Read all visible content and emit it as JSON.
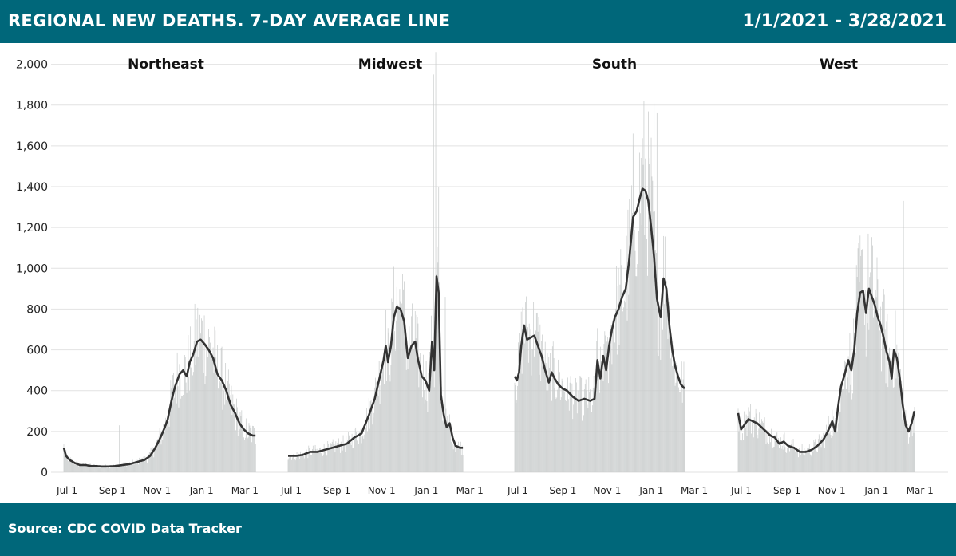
{
  "header": {
    "title": "REGIONAL NEW DEATHS. 7-DAY AVERAGE LINE",
    "date_range": "1/1/2021 - 3/28/2021"
  },
  "footer": {
    "source": "Source: CDC COVID Data Tracker"
  },
  "colors": {
    "banner": "#00677a",
    "bars": "#c9cccc",
    "line": "#333333",
    "grid": "#e2e2e2"
  },
  "chart_data": {
    "type": "bar",
    "title": "REGIONAL NEW DEATHS. 7-DAY AVERAGE LINE",
    "ylim": [
      0,
      2100
    ],
    "yticks": [
      0,
      200,
      400,
      600,
      800,
      1000,
      1200,
      1400,
      1600,
      1800,
      2000
    ],
    "ytick_labels": [
      "0",
      "200",
      "400",
      "600",
      "800",
      "1,000",
      "1,200",
      "1,400",
      "1,600",
      "1,800",
      "2,000"
    ],
    "x_domain_days": [
      0,
      277
    ],
    "xticks": [
      {
        "label": "Jul 1",
        "day": 0
      },
      {
        "label": "Sep 1",
        "day": 62
      },
      {
        "label": "Nov 1",
        "day": 123
      },
      {
        "label": "Jan 1",
        "day": 184
      },
      {
        "label": "Mar 1",
        "day": 243
      }
    ],
    "grid": true,
    "panels": [
      {
        "name": "Northeast",
        "bar_noise": 0.55,
        "spikes": [
          {
            "day": 76,
            "value": 230
          }
        ],
        "avg_series": [
          [
            0,
            120
          ],
          [
            3,
            80
          ],
          [
            8,
            60
          ],
          [
            15,
            45
          ],
          [
            22,
            35
          ],
          [
            30,
            35
          ],
          [
            38,
            30
          ],
          [
            45,
            30
          ],
          [
            52,
            28
          ],
          [
            60,
            28
          ],
          [
            70,
            30
          ],
          [
            80,
            35
          ],
          [
            90,
            40
          ],
          [
            100,
            50
          ],
          [
            110,
            60
          ],
          [
            118,
            80
          ],
          [
            125,
            120
          ],
          [
            132,
            170
          ],
          [
            138,
            220
          ],
          [
            142,
            260
          ],
          [
            147,
            350
          ],
          [
            152,
            420
          ],
          [
            158,
            480
          ],
          [
            163,
            500
          ],
          [
            168,
            470
          ],
          [
            172,
            540
          ],
          [
            177,
            580
          ],
          [
            182,
            640
          ],
          [
            187,
            650
          ],
          [
            192,
            630
          ],
          [
            198,
            600
          ],
          [
            204,
            560
          ],
          [
            210,
            480
          ],
          [
            216,
            450
          ],
          [
            222,
            400
          ],
          [
            228,
            330
          ],
          [
            234,
            290
          ],
          [
            240,
            240
          ],
          [
            246,
            210
          ],
          [
            252,
            190
          ],
          [
            258,
            180
          ],
          [
            262,
            180
          ]
        ]
      },
      {
        "name": "Midwest",
        "bar_noise": 0.5,
        "spikes": [
          {
            "day": 198,
            "value": 1950
          },
          {
            "day": 201,
            "value": 2060
          },
          {
            "day": 205,
            "value": 1400
          },
          {
            "day": 214,
            "value": 860
          }
        ],
        "avg_series": [
          [
            0,
            80
          ],
          [
            10,
            80
          ],
          [
            20,
            85
          ],
          [
            30,
            100
          ],
          [
            40,
            100
          ],
          [
            50,
            110
          ],
          [
            60,
            120
          ],
          [
            70,
            130
          ],
          [
            80,
            140
          ],
          [
            90,
            170
          ],
          [
            100,
            190
          ],
          [
            110,
            280
          ],
          [
            118,
            360
          ],
          [
            125,
            470
          ],
          [
            130,
            550
          ],
          [
            133,
            620
          ],
          [
            136,
            540
          ],
          [
            140,
            620
          ],
          [
            144,
            760
          ],
          [
            148,
            810
          ],
          [
            153,
            800
          ],
          [
            158,
            740
          ],
          [
            163,
            560
          ],
          [
            168,
            620
          ],
          [
            173,
            640
          ],
          [
            177,
            550
          ],
          [
            182,
            470
          ],
          [
            187,
            450
          ],
          [
            192,
            400
          ],
          [
            196,
            640
          ],
          [
            199,
            500
          ],
          [
            202,
            960
          ],
          [
            205,
            880
          ],
          [
            208,
            380
          ],
          [
            212,
            280
          ],
          [
            216,
            220
          ],
          [
            220,
            240
          ],
          [
            224,
            170
          ],
          [
            228,
            130
          ],
          [
            234,
            120
          ],
          [
            238,
            120
          ]
        ]
      },
      {
        "name": "South",
        "bar_noise": 0.5,
        "spikes": [
          {
            "day": 188,
            "value": 1640
          },
          {
            "day": 192,
            "value": 1810
          },
          {
            "day": 196,
            "value": 1760
          }
        ],
        "avg_series": [
          [
            0,
            470
          ],
          [
            3,
            450
          ],
          [
            6,
            490
          ],
          [
            9,
            620
          ],
          [
            13,
            720
          ],
          [
            17,
            650
          ],
          [
            22,
            660
          ],
          [
            27,
            670
          ],
          [
            32,
            620
          ],
          [
            37,
            570
          ],
          [
            42,
            500
          ],
          [
            47,
            440
          ],
          [
            51,
            490
          ],
          [
            55,
            460
          ],
          [
            60,
            430
          ],
          [
            66,
            410
          ],
          [
            72,
            400
          ],
          [
            80,
            370
          ],
          [
            88,
            350
          ],
          [
            96,
            360
          ],
          [
            104,
            350
          ],
          [
            110,
            360
          ],
          [
            114,
            550
          ],
          [
            118,
            460
          ],
          [
            122,
            570
          ],
          [
            126,
            500
          ],
          [
            130,
            620
          ],
          [
            134,
            700
          ],
          [
            138,
            760
          ],
          [
            143,
            800
          ],
          [
            148,
            860
          ],
          [
            153,
            900
          ],
          [
            158,
            1050
          ],
          [
            163,
            1250
          ],
          [
            168,
            1280
          ],
          [
            172,
            1340
          ],
          [
            176,
            1390
          ],
          [
            180,
            1380
          ],
          [
            184,
            1330
          ],
          [
            188,
            1200
          ],
          [
            192,
            1050
          ],
          [
            196,
            850
          ],
          [
            201,
            760
          ],
          [
            205,
            950
          ],
          [
            209,
            900
          ],
          [
            213,
            720
          ],
          [
            217,
            600
          ],
          [
            221,
            520
          ],
          [
            225,
            470
          ],
          [
            229,
            430
          ],
          [
            234,
            410
          ]
        ]
      },
      {
        "name": "West",
        "bar_noise": 0.55,
        "spikes": [
          {
            "day": 225,
            "value": 1330
          }
        ],
        "avg_series": [
          [
            0,
            290
          ],
          [
            4,
            210
          ],
          [
            8,
            230
          ],
          [
            14,
            260
          ],
          [
            20,
            250
          ],
          [
            26,
            240
          ],
          [
            32,
            220
          ],
          [
            38,
            200
          ],
          [
            44,
            180
          ],
          [
            50,
            170
          ],
          [
            56,
            140
          ],
          [
            62,
            150
          ],
          [
            68,
            130
          ],
          [
            76,
            120
          ],
          [
            84,
            100
          ],
          [
            92,
            100
          ],
          [
            100,
            110
          ],
          [
            108,
            130
          ],
          [
            116,
            160
          ],
          [
            122,
            200
          ],
          [
            128,
            250
          ],
          [
            132,
            200
          ],
          [
            136,
            320
          ],
          [
            140,
            420
          ],
          [
            145,
            480
          ],
          [
            150,
            550
          ],
          [
            154,
            500
          ],
          [
            158,
            600
          ],
          [
            162,
            780
          ],
          [
            166,
            880
          ],
          [
            170,
            890
          ],
          [
            174,
            780
          ],
          [
            178,
            900
          ],
          [
            182,
            860
          ],
          [
            186,
            820
          ],
          [
            190,
            760
          ],
          [
            194,
            720
          ],
          [
            198,
            660
          ],
          [
            202,
            590
          ],
          [
            206,
            540
          ],
          [
            209,
            460
          ],
          [
            212,
            600
          ],
          [
            216,
            560
          ],
          [
            220,
            460
          ],
          [
            224,
            330
          ],
          [
            228,
            230
          ],
          [
            232,
            200
          ],
          [
            236,
            240
          ],
          [
            240,
            300
          ]
        ]
      }
    ]
  }
}
